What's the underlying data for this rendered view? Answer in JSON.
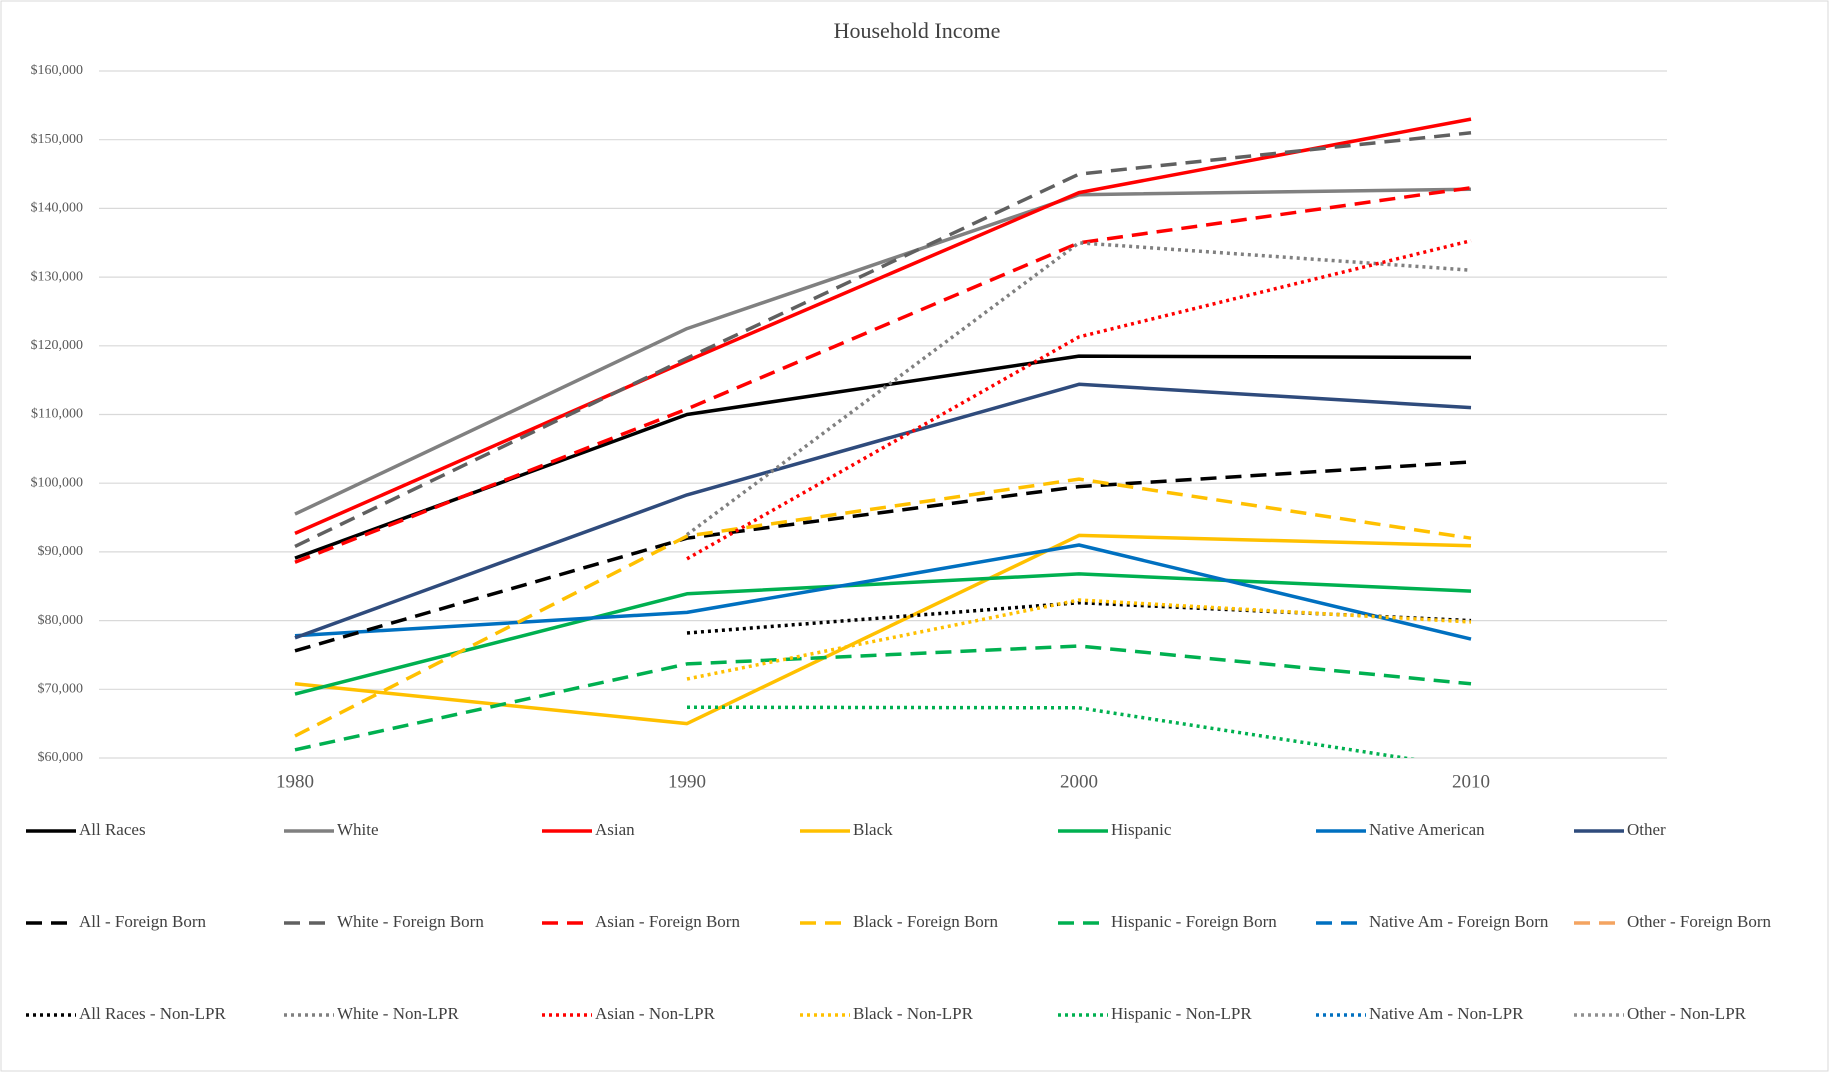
{
  "chart_data": {
    "type": "line",
    "title": "Household Income",
    "x": [
      1980,
      1990,
      2000,
      2010
    ],
    "xlim": [
      1975,
      2015
    ],
    "xticks": [
      1980,
      1990,
      2000,
      2010
    ],
    "ylim": [
      60000,
      160000
    ],
    "yticks": [
      {
        "value": 60000,
        "label": "$60,000"
      },
      {
        "value": 70000,
        "label": "$70,000"
      },
      {
        "value": 80000,
        "label": "$80,000"
      },
      {
        "value": 90000,
        "label": "$90,000"
      },
      {
        "value": 100000,
        "label": "$100,000"
      },
      {
        "value": 110000,
        "label": "$110,000"
      },
      {
        "value": 120000,
        "label": "$120,000"
      },
      {
        "value": 130000,
        "label": "$130,000"
      },
      {
        "value": 140000,
        "label": "$140,000"
      },
      {
        "value": 150000,
        "label": "$150,000"
      },
      {
        "value": 160000,
        "label": "$160,000"
      }
    ],
    "grid": true,
    "legend": "bottom",
    "series": [
      {
        "name": "All Races",
        "color": "#000000",
        "dash": "solid",
        "values": [
          89100,
          110000,
          118500,
          118300
        ]
      },
      {
        "name": "White",
        "color": "#808080",
        "dash": "solid",
        "values": [
          95500,
          122500,
          142000,
          142800
        ]
      },
      {
        "name": "Asian",
        "color": "#ff0000",
        "dash": "solid",
        "values": [
          92700,
          117800,
          142300,
          153000
        ]
      },
      {
        "name": "Black",
        "color": "#ffc000",
        "dash": "solid",
        "values": [
          70800,
          65000,
          92400,
          90900
        ]
      },
      {
        "name": "Hispanic",
        "color": "#00b050",
        "dash": "solid",
        "values": [
          69300,
          83900,
          86800,
          84300
        ]
      },
      {
        "name": "Native American",
        "color": "#0070c0",
        "dash": "solid",
        "values": [
          77800,
          81200,
          91000,
          77300
        ]
      },
      {
        "name": "Other",
        "color": "#2f4b7c",
        "dash": "solid",
        "values": [
          77500,
          98300,
          114400,
          111000
        ]
      },
      {
        "name": "All - Foreign Born",
        "color": "#000000",
        "dash": "dashed",
        "values": [
          75600,
          92000,
          99500,
          103100
        ]
      },
      {
        "name": "White - Foreign Born",
        "color": "#606060",
        "dash": "dashed",
        "values": [
          90800,
          118200,
          145000,
          151000
        ]
      },
      {
        "name": "Asian - Foreign Born",
        "color": "#ff0000",
        "dash": "dashed",
        "values": [
          88500,
          110800,
          135000,
          143000
        ]
      },
      {
        "name": "Black - Foreign Born",
        "color": "#ffc000",
        "dash": "dashed",
        "values": [
          63200,
          92300,
          100600,
          92000
        ]
      },
      {
        "name": "Hispanic - Foreign Born",
        "color": "#00b050",
        "dash": "dashed",
        "values": [
          61200,
          73700,
          76300,
          70800
        ]
      },
      {
        "name": "Native Am - Foreign Born",
        "color": "#0070c0",
        "dash": "dashed",
        "values": [
          null,
          null,
          null,
          null
        ]
      },
      {
        "name": "Other - Foreign Born",
        "color": "#f4a460",
        "dash": "dashed",
        "values": [
          null,
          null,
          null,
          null
        ]
      },
      {
        "name": "All Races - Non-LPR",
        "color": "#000000",
        "dash": "dotted",
        "values": [
          null,
          78200,
          82600,
          80000
        ]
      },
      {
        "name": "White - Non-LPR",
        "color": "#808080",
        "dash": "dotted",
        "values": [
          null,
          92500,
          135000,
          131000
        ]
      },
      {
        "name": "Asian - Non-LPR",
        "color": "#ff0000",
        "dash": "dotted",
        "values": [
          null,
          89000,
          121300,
          135300
        ]
      },
      {
        "name": "Black - Non-LPR",
        "color": "#ffc000",
        "dash": "dotted",
        "values": [
          null,
          71500,
          83000,
          79800
        ]
      },
      {
        "name": "Hispanic - Non-LPR",
        "color": "#00b050",
        "dash": "dotted",
        "values": [
          null,
          67400,
          67300,
          58500
        ]
      },
      {
        "name": "Native Am - Non-LPR",
        "color": "#0070c0",
        "dash": "dotted",
        "values": [
          null,
          null,
          null,
          null
        ]
      },
      {
        "name": "Other - Non-LPR",
        "color": "#909090",
        "dash": "dotted",
        "values": [
          null,
          null,
          null,
          null
        ]
      }
    ]
  }
}
